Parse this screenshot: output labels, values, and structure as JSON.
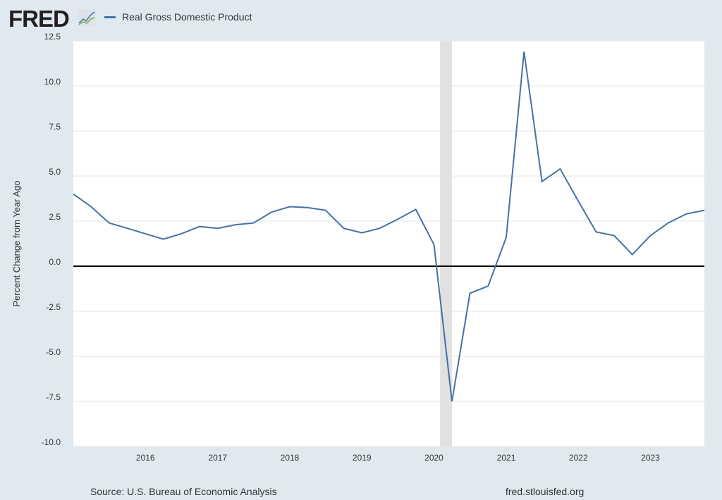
{
  "header": {
    "logo": "FRED",
    "logo_icon": "chart-line-icon",
    "legend_label": "Real Gross Domestic Product",
    "series_color": "#4572a7"
  },
  "footer": {
    "source": "Source: U.S. Bureau of Economic Analysis",
    "url": "fred.stlouisfed.org"
  },
  "chart_data": {
    "type": "line",
    "title": "",
    "ylabel": "Percent Change from Year Ago",
    "xlabel": "",
    "ylim": [
      -10,
      12.5
    ],
    "xlim": [
      "2015-01-01",
      "2023-10-01"
    ],
    "yticks": [
      "12.5",
      "10.0",
      "7.5",
      "5.0",
      "2.5",
      "0.0",
      "-2.5",
      "-5.0",
      "-7.5",
      "-10.0"
    ],
    "xticks": [
      "2016",
      "2017",
      "2018",
      "2019",
      "2020",
      "2021",
      "2022",
      "2023"
    ],
    "grid": true,
    "recession_shading": [
      [
        "2020-02-01",
        "2020-04-01"
      ]
    ],
    "zero_line": true,
    "series": [
      {
        "name": "Real Gross Domestic Product",
        "color": "#4572a7",
        "x": [
          "2015-01-01",
          "2015-04-01",
          "2015-07-01",
          "2015-10-01",
          "2016-01-01",
          "2016-04-01",
          "2016-07-01",
          "2016-10-01",
          "2017-01-01",
          "2017-04-01",
          "2017-07-01",
          "2017-10-01",
          "2018-01-01",
          "2018-04-01",
          "2018-07-01",
          "2018-10-01",
          "2019-01-01",
          "2019-04-01",
          "2019-07-01",
          "2019-10-01",
          "2020-01-01",
          "2020-04-01",
          "2020-07-01",
          "2020-10-01",
          "2021-01-01",
          "2021-04-01",
          "2021-07-01",
          "2021-10-01",
          "2022-01-01",
          "2022-04-01",
          "2022-07-01",
          "2022-10-01",
          "2023-01-01",
          "2023-04-01",
          "2023-07-01",
          "2023-10-01"
        ],
        "values": [
          4.0,
          3.3,
          2.4,
          2.1,
          1.8,
          1.5,
          1.8,
          2.2,
          2.1,
          2.3,
          2.4,
          3.0,
          3.3,
          3.25,
          3.1,
          2.1,
          1.85,
          2.1,
          2.6,
          3.15,
          1.2,
          -7.5,
          -1.5,
          -1.1,
          1.6,
          11.9,
          4.7,
          5.4,
          3.6,
          1.9,
          1.7,
          0.65,
          1.7,
          2.4,
          2.9,
          3.1
        ]
      }
    ]
  }
}
